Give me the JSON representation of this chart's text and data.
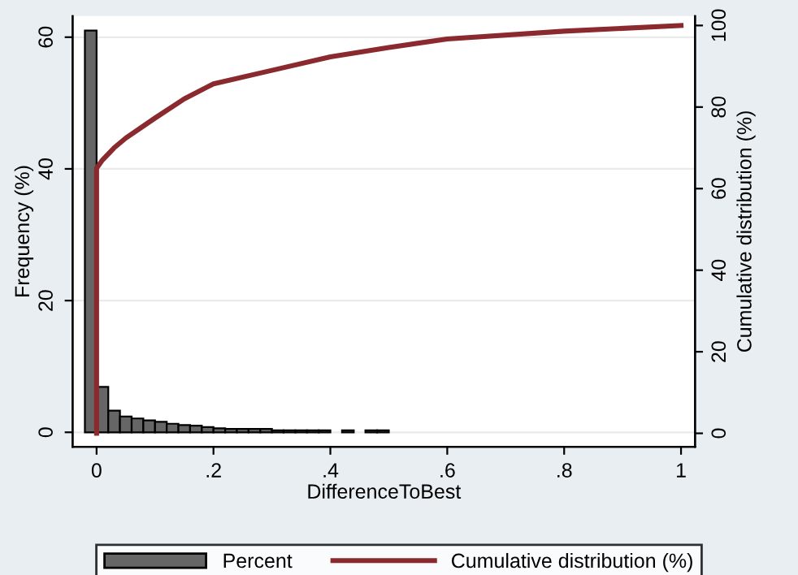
{
  "chart_data": {
    "type": "histogram",
    "xlabel": "DifferenceToBest",
    "ylabel": "Frequency (%)",
    "y2label": "Cumulative distribution (%)",
    "series": [
      {
        "name": "Percent",
        "color": "#666666",
        "bins": [
          -0.02,
          0,
          0.02,
          0.04,
          0.06,
          0.08,
          0.1,
          0.12,
          0.14,
          0.16,
          0.18,
          0.2,
          0.22,
          0.24,
          0.26,
          0.28,
          0.3,
          0.32,
          0.34,
          0.36,
          0.38,
          0.4,
          0.42,
          0.44,
          0.46,
          0.48,
          0.5
        ],
        "values": [
          61,
          6.9,
          3.3,
          2.4,
          2.1,
          1.8,
          1.6,
          1.3,
          1.1,
          1.0,
          0.8,
          0.6,
          0.5,
          0.5,
          0.5,
          0.5,
          0.3,
          0.3,
          0.3,
          0.3,
          0.3,
          0,
          0.3,
          0,
          0.3,
          0.3
        ]
      },
      {
        "name": "Cumulative distribution (%)",
        "type": "line",
        "axis": "y2",
        "color": "#8b2a2e",
        "x": [
          0,
          0,
          0.01,
          0.03,
          0.05,
          0.1,
          0.15,
          0.2,
          0.3,
          0.4,
          0.5,
          0.6,
          0.8,
          1
        ],
        "values": [
          0,
          65,
          67,
          70,
          72.4,
          77.3,
          82,
          85.7,
          89,
          92.3,
          94.6,
          96.7,
          98.6,
          100
        ]
      }
    ],
    "xlim": [
      -0.041,
      1.024
    ],
    "xticks": [
      {
        "value": 0,
        "label": "0"
      },
      {
        "value": 0.2,
        "label": ".2"
      },
      {
        "value": 0.4,
        "label": ".4"
      },
      {
        "value": 0.6,
        "label": ".6"
      },
      {
        "value": 0.8,
        "label": ".8"
      },
      {
        "value": 1,
        "label": "1"
      }
    ],
    "ylim": [
      -2.2,
      63.2
    ],
    "yticks": [
      0,
      20,
      40,
      60
    ],
    "y2lim": [
      -3.3,
      102.3
    ],
    "y2ticks": [
      0,
      20,
      40,
      60,
      80,
      100
    ],
    "grid": "y",
    "legend": "bottom"
  }
}
